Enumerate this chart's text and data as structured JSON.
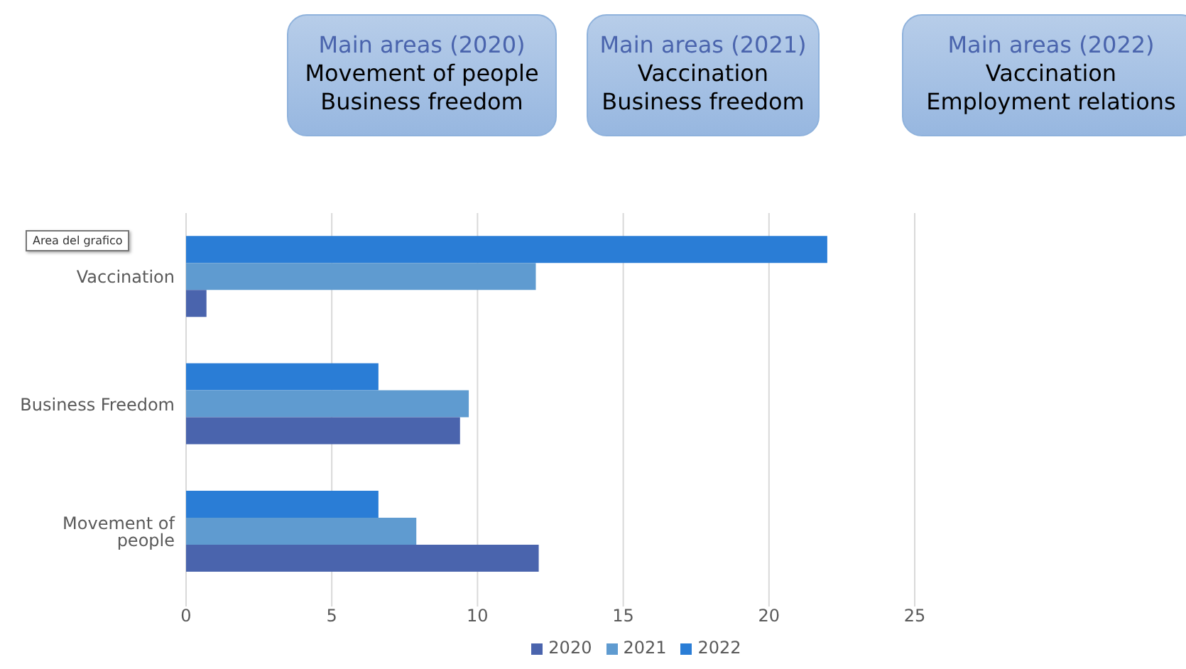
{
  "chart_data": {
    "type": "bar",
    "orientation": "horizontal",
    "categories": [
      "Vaccination",
      "Business Freedom",
      "Movement of people"
    ],
    "series": [
      {
        "name": "2022",
        "color": "#2a7dd6",
        "values": [
          22,
          6.6,
          6.6
        ]
      },
      {
        "name": "2021",
        "color": "#5f9bd0",
        "values": [
          12,
          9.7,
          7.9
        ]
      },
      {
        "name": "2020",
        "color": "#4a64ad",
        "values": [
          0.7,
          9.4,
          12.1
        ]
      }
    ],
    "xlim": [
      0,
      25
    ],
    "xticks": [
      0,
      5,
      10,
      15,
      20,
      25
    ],
    "grid": "x",
    "legend": "bottom",
    "annotations": [
      "Main areas (2020)",
      "Movement of people",
      "Business freedom",
      "Main areas (2021)",
      "Vaccination",
      "Business freedom",
      "Main areas (2022)",
      "Vaccination",
      "Employment relations",
      "Area del grafico"
    ]
  }
}
